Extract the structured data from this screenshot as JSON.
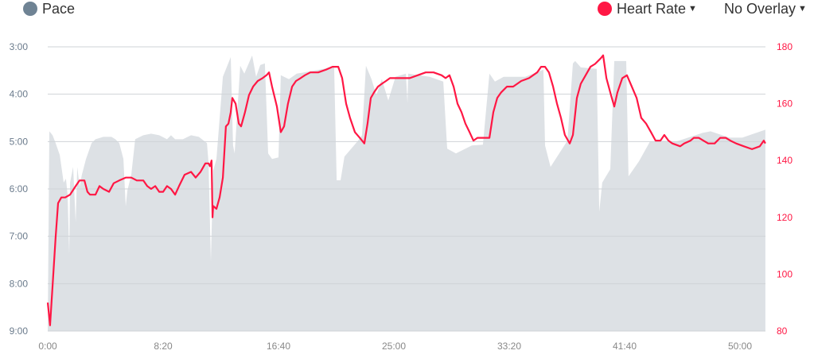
{
  "legend": {
    "left": {
      "label": "Pace",
      "color": "#6f8394"
    },
    "right": {
      "label": "Heart Rate",
      "color": "#ff1744",
      "dropdown_icon": "caret-down-icon"
    },
    "overlay": {
      "label": "No Overlay",
      "dropdown_icon": "caret-down-icon"
    }
  },
  "colors": {
    "pace_fill": "#dde1e5",
    "hr_line": "#ff1744",
    "grid": "#cfd3d7",
    "axis_text": "#6b7b8c",
    "hr_axis_text": "#ff1744",
    "x_text": "#888888"
  },
  "chart_data": {
    "type": "area+line",
    "grid": true,
    "x": {
      "label": "",
      "unit": "seconds",
      "range": [
        0,
        3110
      ],
      "ticks": [
        0,
        500,
        1000,
        1500,
        2000,
        2500,
        3000
      ],
      "tick_labels": [
        "0:00",
        "8:20",
        "16:40",
        "25:00",
        "33:20",
        "41:40",
        "50:00"
      ]
    },
    "y_left": {
      "label": "",
      "unit": "seconds per unit (pace)",
      "range": [
        180,
        540
      ],
      "inverted": true,
      "ticks": [
        180,
        240,
        300,
        360,
        420,
        480,
        540
      ],
      "tick_labels": [
        "3:00",
        "4:00",
        "5:00",
        "6:00",
        "7:00",
        "8:00",
        "9:00"
      ]
    },
    "y_right": {
      "label": "",
      "unit": "bpm",
      "range": [
        80,
        180
      ],
      "ticks": [
        80,
        100,
        120,
        140,
        160,
        180
      ],
      "tick_labels": [
        "80",
        "100",
        "120",
        "140",
        "160",
        "180"
      ]
    },
    "series": [
      {
        "name": "Pace",
        "type": "area",
        "axis": "left",
        "points": [
          [
            0,
            540
          ],
          [
            7,
            287
          ],
          [
            21,
            292
          ],
          [
            34,
            302
          ],
          [
            52,
            317
          ],
          [
            69,
            352
          ],
          [
            79,
            347
          ],
          [
            86,
            367
          ],
          [
            93,
            442
          ],
          [
            97,
            352
          ],
          [
            110,
            332
          ],
          [
            121,
            402
          ],
          [
            128,
            332
          ],
          [
            138,
            357
          ],
          [
            148,
            342
          ],
          [
            166,
            322
          ],
          [
            190,
            302
          ],
          [
            207,
            297
          ],
          [
            241,
            294
          ],
          [
            276,
            294
          ],
          [
            293,
            297
          ],
          [
            310,
            302
          ],
          [
            328,
            322
          ],
          [
            338,
            382
          ],
          [
            345,
            362
          ],
          [
            362,
            342
          ],
          [
            379,
            297
          ],
          [
            414,
            292
          ],
          [
            448,
            290
          ],
          [
            483,
            292
          ],
          [
            517,
            297
          ],
          [
            534,
            292
          ],
          [
            552,
            297
          ],
          [
            586,
            297
          ],
          [
            621,
            292
          ],
          [
            655,
            294
          ],
          [
            690,
            302
          ],
          [
            697,
            327
          ],
          [
            707,
            452
          ],
          [
            717,
            337
          ],
          [
            731,
            322
          ],
          [
            745,
            271
          ],
          [
            759,
            218
          ],
          [
            793,
            193
          ],
          [
            803,
            305
          ],
          [
            810,
            315
          ],
          [
            834,
            204
          ],
          [
            852,
            214
          ],
          [
            886,
            191
          ],
          [
            903,
            218
          ],
          [
            921,
            203
          ],
          [
            941,
            201
          ],
          [
            955,
            315
          ],
          [
            972,
            322
          ],
          [
            1000,
            320
          ],
          [
            1010,
            216
          ],
          [
            1045,
            221
          ],
          [
            1079,
            214
          ],
          [
            1196,
            208
          ],
          [
            1241,
            204
          ],
          [
            1252,
            349
          ],
          [
            1269,
            349
          ],
          [
            1286,
            319
          ],
          [
            1345,
            299
          ],
          [
            1362,
            292
          ],
          [
            1379,
            204
          ],
          [
            1403,
            221
          ],
          [
            1424,
            241
          ],
          [
            1448,
            221
          ],
          [
            1476,
            248
          ],
          [
            1507,
            218
          ],
          [
            1552,
            214
          ],
          [
            1559,
            251
          ],
          [
            1562,
            214
          ],
          [
            1655,
            218
          ],
          [
            1714,
            224
          ],
          [
            1731,
            309
          ],
          [
            1769,
            315
          ],
          [
            1838,
            305
          ],
          [
            1886,
            304
          ],
          [
            1914,
            214
          ],
          [
            1938,
            224
          ],
          [
            1976,
            218
          ],
          [
            2069,
            218
          ],
          [
            2148,
            209
          ],
          [
            2155,
            305
          ],
          [
            2179,
            332
          ],
          [
            2252,
            299
          ],
          [
            2276,
            201
          ],
          [
            2286,
            198
          ],
          [
            2310,
            206
          ],
          [
            2379,
            208
          ],
          [
            2390,
            389
          ],
          [
            2403,
            352
          ],
          [
            2438,
            335
          ],
          [
            2455,
            198
          ],
          [
            2507,
            198
          ],
          [
            2517,
            344
          ],
          [
            2562,
            325
          ],
          [
            2610,
            300
          ],
          [
            2665,
            299
          ],
          [
            2724,
            300
          ],
          [
            2838,
            289
          ],
          [
            2872,
            287
          ],
          [
            2955,
            295
          ],
          [
            3010,
            295
          ],
          [
            3110,
            285
          ]
        ]
      },
      {
        "name": "Heart Rate",
        "type": "line",
        "axis": "right",
        "points": [
          [
            0,
            90
          ],
          [
            10,
            82
          ],
          [
            21,
            96
          ],
          [
            34,
            113
          ],
          [
            45,
            125
          ],
          [
            59,
            127
          ],
          [
            76,
            127
          ],
          [
            97,
            128
          ],
          [
            121,
            131
          ],
          [
            138,
            133
          ],
          [
            159,
            133
          ],
          [
            172,
            129
          ],
          [
            183,
            128
          ],
          [
            207,
            128
          ],
          [
            224,
            131
          ],
          [
            241,
            130
          ],
          [
            266,
            129
          ],
          [
            286,
            132
          ],
          [
            310,
            133
          ],
          [
            338,
            134
          ],
          [
            362,
            134
          ],
          [
            386,
            133
          ],
          [
            414,
            133
          ],
          [
            431,
            131
          ],
          [
            448,
            130
          ],
          [
            466,
            131
          ],
          [
            483,
            129
          ],
          [
            500,
            129
          ],
          [
            517,
            131
          ],
          [
            534,
            130
          ],
          [
            552,
            128
          ],
          [
            569,
            131
          ],
          [
            593,
            135
          ],
          [
            621,
            136
          ],
          [
            641,
            134
          ],
          [
            662,
            136
          ],
          [
            683,
            139
          ],
          [
            697,
            139
          ],
          [
            703,
            138
          ],
          [
            710,
            140
          ],
          [
            714,
            120
          ],
          [
            717,
            124
          ],
          [
            731,
            123
          ],
          [
            745,
            127
          ],
          [
            759,
            134
          ],
          [
            772,
            152
          ],
          [
            783,
            153
          ],
          [
            793,
            157
          ],
          [
            800,
            162
          ],
          [
            814,
            160
          ],
          [
            828,
            153
          ],
          [
            838,
            152
          ],
          [
            855,
            157
          ],
          [
            872,
            163
          ],
          [
            890,
            166
          ],
          [
            910,
            168
          ],
          [
            931,
            169
          ],
          [
            948,
            170
          ],
          [
            959,
            171
          ],
          [
            972,
            166
          ],
          [
            993,
            159
          ],
          [
            1010,
            150
          ],
          [
            1024,
            152
          ],
          [
            1041,
            160
          ],
          [
            1059,
            166
          ],
          [
            1076,
            168
          ],
          [
            1096,
            169
          ],
          [
            1114,
            170
          ],
          [
            1138,
            171
          ],
          [
            1172,
            171
          ],
          [
            1207,
            172
          ],
          [
            1234,
            173
          ],
          [
            1259,
            173
          ],
          [
            1276,
            169
          ],
          [
            1293,
            160
          ],
          [
            1310,
            155
          ],
          [
            1331,
            150
          ],
          [
            1352,
            148
          ],
          [
            1372,
            146
          ],
          [
            1386,
            153
          ],
          [
            1400,
            162
          ],
          [
            1414,
            164
          ],
          [
            1431,
            166
          ],
          [
            1448,
            167
          ],
          [
            1466,
            168
          ],
          [
            1483,
            169
          ],
          [
            1517,
            169
          ],
          [
            1569,
            169
          ],
          [
            1603,
            170
          ],
          [
            1638,
            171
          ],
          [
            1672,
            171
          ],
          [
            1707,
            170
          ],
          [
            1724,
            169
          ],
          [
            1741,
            170
          ],
          [
            1759,
            166
          ],
          [
            1776,
            160
          ],
          [
            1793,
            157
          ],
          [
            1810,
            153
          ],
          [
            1828,
            150
          ],
          [
            1845,
            147
          ],
          [
            1862,
            148
          ],
          [
            1914,
            148
          ],
          [
            1931,
            157
          ],
          [
            1948,
            162
          ],
          [
            1965,
            164
          ],
          [
            1990,
            166
          ],
          [
            2017,
            166
          ],
          [
            2052,
            168
          ],
          [
            2086,
            169
          ],
          [
            2121,
            171
          ],
          [
            2138,
            173
          ],
          [
            2155,
            173
          ],
          [
            2172,
            171
          ],
          [
            2190,
            166
          ],
          [
            2207,
            160
          ],
          [
            2224,
            155
          ],
          [
            2241,
            149
          ],
          [
            2262,
            146
          ],
          [
            2276,
            149
          ],
          [
            2293,
            162
          ],
          [
            2310,
            167
          ],
          [
            2331,
            170
          ],
          [
            2352,
            173
          ],
          [
            2372,
            174
          ],
          [
            2397,
            176
          ],
          [
            2407,
            177
          ],
          [
            2421,
            169
          ],
          [
            2441,
            163
          ],
          [
            2455,
            159
          ],
          [
            2469,
            164
          ],
          [
            2490,
            169
          ],
          [
            2510,
            170
          ],
          [
            2531,
            166
          ],
          [
            2552,
            162
          ],
          [
            2572,
            155
          ],
          [
            2593,
            153
          ],
          [
            2614,
            150
          ],
          [
            2634,
            147
          ],
          [
            2655,
            147
          ],
          [
            2672,
            149
          ],
          [
            2690,
            147
          ],
          [
            2707,
            146
          ],
          [
            2741,
            145
          ],
          [
            2758,
            146
          ],
          [
            2786,
            147
          ],
          [
            2800,
            148
          ],
          [
            2821,
            148
          ],
          [
            2841,
            147
          ],
          [
            2862,
            146
          ],
          [
            2890,
            146
          ],
          [
            2914,
            148
          ],
          [
            2938,
            148
          ],
          [
            2958,
            147
          ],
          [
            2983,
            146
          ],
          [
            3017,
            145
          ],
          [
            3052,
            144
          ],
          [
            3086,
            145
          ],
          [
            3103,
            147
          ],
          [
            3110,
            146
          ]
        ]
      }
    ]
  }
}
